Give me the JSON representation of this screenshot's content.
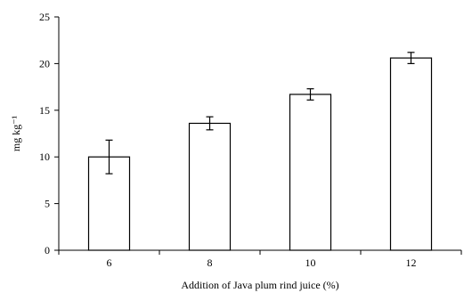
{
  "chart_data": {
    "type": "bar",
    "xlabel": "Addition of  Java plum rind juice (%)",
    "ylabel": "mg kg⁻¹",
    "categories": [
      "6",
      "8",
      "10",
      "12"
    ],
    "values": [
      10.0,
      13.6,
      16.7,
      20.6
    ],
    "error": [
      1.8,
      0.7,
      0.6,
      0.6
    ],
    "ylim": [
      0,
      25
    ],
    "yticks": [
      0,
      5,
      10,
      15,
      20,
      25
    ],
    "ytick_labels": [
      "0",
      "5",
      "10",
      "15",
      "20",
      "25"
    ],
    "grid": false,
    "legend": "none",
    "colors": {
      "bar_fill": "#ffffff",
      "bar_stroke": "#000000",
      "axis": "#000000"
    }
  }
}
